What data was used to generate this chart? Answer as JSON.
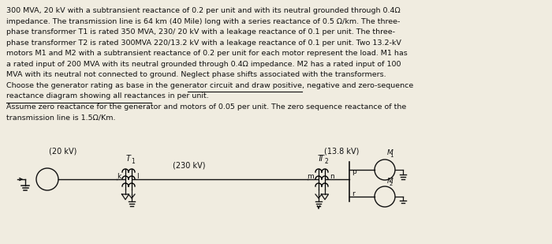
{
  "bg_color": "#f0ece0",
  "text_color": "#111111",
  "lines": [
    "300 MVA, 20 kV with a subtransient reactance of 0.2 per unit and with its neutral grounded through 0.4Ω",
    "impedance. The transmission line is 64 km (40 Mile) long with a series reactance of 0.5 Ω/km. The three-",
    "phase transformer T1 is rated 350 MVA, 230/ 20 kV with a leakage reactance of 0.1 per unit. The three-",
    "phase transformer T2 is rated 300MVA 220/13.2 kV with a leakage reactance of 0.1 per unit. Two 13.2-kV",
    "motors M1 and M2 with a subtransient reactance of 0.2 per unit for each motor represent the load. M1 has",
    "a rated input of 200 MVA with its neutral grounded through 0.4Ω impedance. M2 has a rated input of 100",
    "MVA with its neutral not connected to ground. Neglect phase shifts associated with the transformers.",
    "Choose the generator rating as base in the generator circuit and draw positive, negative and zero-sequence",
    "reactance diagram showing all reactances in per unit.",
    "Assume zero reactance for the generator and motors of 0.05 per unit. The zero sequence reactance of the",
    "transmission line is 1.5Ω/Km."
  ],
  "underline_line8_start": "draw positive, negative and zero-sequence",
  "underline_line9": "reactance diagram showing all reactances in per unit",
  "label_20kv": "(20 kV)",
  "label_230kv": "(230 kV)",
  "label_138kv": "(13.8 kV)",
  "label_T1": "T",
  "label_T1_sub": "1",
  "label_T2": "T",
  "label_T2_sub": "2",
  "label_k": "k",
  "label_l": "l",
  "label_m": "m",
  "label_n": "n",
  "label_p": "p",
  "label_r": "r",
  "label_M1": "M",
  "label_M1_sub": "1",
  "label_M2": "M",
  "label_M2_sub": "2",
  "fs_body": 6.8,
  "fs_small": 6.5,
  "fs_label": 7.0
}
